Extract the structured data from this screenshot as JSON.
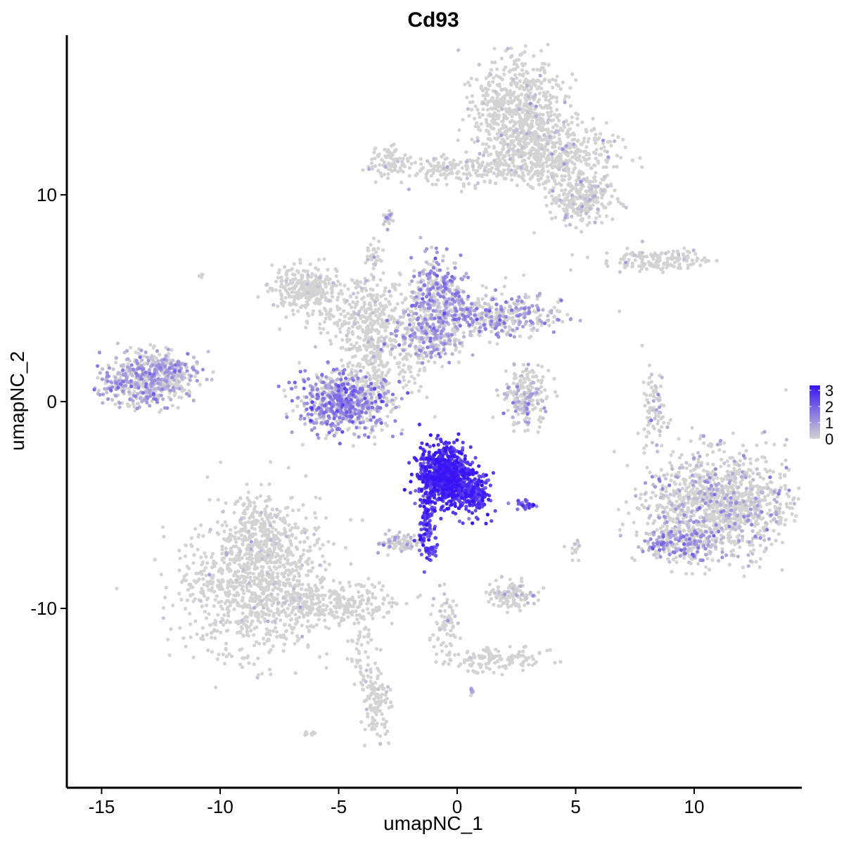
{
  "chart_data": {
    "type": "scatter",
    "title": "Cd93",
    "xlabel": "umapNC_1",
    "ylabel": "umapNC_2",
    "xlim": [
      -16.5,
      14.5
    ],
    "ylim": [
      -18.5,
      17.5
    ],
    "x_ticks": [
      -15,
      -10,
      -5,
      0,
      5,
      10
    ],
    "x_tick_labels": [
      "-15",
      "-10",
      "-5",
      "0",
      "5",
      "10"
    ],
    "y_ticks": [
      -10,
      0,
      10
    ],
    "y_tick_labels": [
      "-10",
      "0",
      "10"
    ],
    "grid": false,
    "legend": {
      "placement": "right",
      "title": "",
      "labels": [
        "0",
        "1",
        "2",
        "3"
      ],
      "values": [
        0,
        1,
        2,
        3
      ]
    },
    "color_scale": {
      "low": "#d3d3d3",
      "high": "#3a14f5",
      "min": 0,
      "max": 3.3
    },
    "series": [
      {
        "clusters": [
          {
            "cx": -8.5,
            "cy": -9.0,
            "sx": 1.6,
            "sy": 1.6,
            "n": 900,
            "expr_mean": 0.05,
            "expr_frac": 0.03
          },
          {
            "cx": -8.2,
            "cy": -6.5,
            "sx": 0.9,
            "sy": 1.0,
            "n": 300,
            "expr_mean": 0.05,
            "expr_frac": 0.03
          },
          {
            "cx": -5.0,
            "cy": -9.8,
            "sx": 1.4,
            "sy": 0.5,
            "n": 250,
            "expr_mean": 0.05,
            "expr_frac": 0.03
          },
          {
            "cx": -3.5,
            "cy": -14.5,
            "sx": 0.3,
            "sy": 0.9,
            "n": 120,
            "expr_mean": 0.2,
            "expr_frac": 0.05
          },
          {
            "cx": -4.0,
            "cy": -12.0,
            "sx": 0.3,
            "sy": 0.9,
            "n": 40,
            "expr_mean": 0.05,
            "expr_frac": 0.02
          },
          {
            "cx": 2.5,
            "cy": 14.0,
            "sx": 0.9,
            "sy": 1.2,
            "n": 600,
            "expr_mean": 0.1,
            "expr_frac": 0.04
          },
          {
            "cx": 4.0,
            "cy": 12.0,
            "sx": 1.3,
            "sy": 0.8,
            "n": 500,
            "expr_mean": 0.15,
            "expr_frac": 0.05
          },
          {
            "cx": 5.3,
            "cy": 9.8,
            "sx": 0.7,
            "sy": 0.6,
            "n": 250,
            "expr_mean": 0.4,
            "expr_frac": 0.15
          },
          {
            "cx": 0.5,
            "cy": 11.2,
            "sx": 1.6,
            "sy": 0.35,
            "n": 200,
            "expr_mean": 0.1,
            "expr_frac": 0.05
          },
          {
            "cx": -2.7,
            "cy": 11.6,
            "sx": 0.6,
            "sy": 0.4,
            "n": 80,
            "expr_mean": 0.1,
            "expr_frac": 0.05
          },
          {
            "cx": 8.5,
            "cy": 6.8,
            "sx": 1.2,
            "sy": 0.25,
            "n": 150,
            "expr_mean": 0.15,
            "expr_frac": 0.05
          },
          {
            "cx": -6.4,
            "cy": 5.5,
            "sx": 0.7,
            "sy": 0.5,
            "n": 250,
            "expr_mean": 0.05,
            "expr_frac": 0.02
          },
          {
            "cx": -4.2,
            "cy": 4.3,
            "sx": 1.2,
            "sy": 0.7,
            "n": 250,
            "expr_mean": 0.1,
            "expr_frac": 0.04
          },
          {
            "cx": -3.6,
            "cy": 2.0,
            "sx": 0.6,
            "sy": 1.5,
            "n": 300,
            "expr_mean": 0.2,
            "expr_frac": 0.08
          },
          {
            "cx": -1.2,
            "cy": 3.2,
            "sx": 0.8,
            "sy": 0.6,
            "n": 250,
            "expr_mean": 0.8,
            "expr_frac": 0.5
          },
          {
            "cx": -0.8,
            "cy": 5.2,
            "sx": 0.6,
            "sy": 0.9,
            "n": 300,
            "expr_mean": 1.1,
            "expr_frac": 0.55
          },
          {
            "cx": 1.5,
            "cy": 4.2,
            "sx": 1.5,
            "sy": 0.5,
            "n": 400,
            "expr_mean": 0.9,
            "expr_frac": 0.5
          },
          {
            "cx": -4.8,
            "cy": -0.1,
            "sx": 0.9,
            "sy": 0.7,
            "n": 650,
            "expr_mean": 1.3,
            "expr_frac": 0.6
          },
          {
            "cx": -13.2,
            "cy": 1.0,
            "sx": 0.9,
            "sy": 0.6,
            "n": 500,
            "expr_mean": 0.8,
            "expr_frac": 0.5
          },
          {
            "cx": -12.0,
            "cy": 1.6,
            "sx": 0.6,
            "sy": 0.4,
            "n": 130,
            "expr_mean": 0.7,
            "expr_frac": 0.5
          },
          {
            "cx": 2.9,
            "cy": 0.3,
            "sx": 0.5,
            "sy": 0.8,
            "n": 200,
            "expr_mean": 0.5,
            "expr_frac": 0.3
          },
          {
            "cx": 8.3,
            "cy": -0.5,
            "sx": 0.25,
            "sy": 0.9,
            "n": 80,
            "expr_mean": 0.3,
            "expr_frac": 0.2
          },
          {
            "cx": 11.0,
            "cy": -5.0,
            "sx": 1.5,
            "sy": 1.3,
            "n": 1200,
            "expr_mean": 0.6,
            "expr_frac": 0.22
          },
          {
            "cx": 9.5,
            "cy": -6.8,
            "sx": 0.8,
            "sy": 0.4,
            "n": 200,
            "expr_mean": 1.0,
            "expr_frac": 0.5
          },
          {
            "cx": -0.5,
            "cy": -3.6,
            "sx": 0.55,
            "sy": 0.7,
            "n": 900,
            "expr_mean": 2.8,
            "expr_frac": 1.0
          },
          {
            "cx": 0.7,
            "cy": -4.5,
            "sx": 0.35,
            "sy": 0.5,
            "n": 180,
            "expr_mean": 2.6,
            "expr_frac": 1.0
          },
          {
            "cx": -1.3,
            "cy": -6.0,
            "sx": 0.2,
            "sy": 0.8,
            "n": 100,
            "expr_mean": 2.4,
            "expr_frac": 1.0
          },
          {
            "cx": 2.8,
            "cy": -5.0,
            "sx": 0.25,
            "sy": 0.1,
            "n": 30,
            "expr_mean": 2.0,
            "expr_frac": 1.0
          },
          {
            "cx": -2.4,
            "cy": -6.8,
            "sx": 0.4,
            "sy": 0.25,
            "n": 80,
            "expr_mean": 0.4,
            "expr_frac": 0.3
          },
          {
            "cx": -1.0,
            "cy": -7.2,
            "sx": 0.15,
            "sy": 0.12,
            "n": 20,
            "expr_mean": 2.0,
            "expr_frac": 1.0
          },
          {
            "cx": 2.3,
            "cy": -9.3,
            "sx": 0.5,
            "sy": 0.35,
            "n": 120,
            "expr_mean": 0.4,
            "expr_frac": 0.2
          },
          {
            "cx": 5.0,
            "cy": -7.2,
            "sx": 0.1,
            "sy": 0.25,
            "n": 15,
            "expr_mean": 0.3,
            "expr_frac": 0.2
          },
          {
            "cx": -0.5,
            "cy": -10.8,
            "sx": 0.3,
            "sy": 0.8,
            "n": 70,
            "expr_mean": 0.2,
            "expr_frac": 0.1
          },
          {
            "cx": 1.5,
            "cy": -12.5,
            "sx": 1.0,
            "sy": 0.3,
            "n": 120,
            "expr_mean": 0.05,
            "expr_frac": 0.02
          },
          {
            "cx": -1.8,
            "cy": 1.5,
            "sx": 0.5,
            "sy": 0.5,
            "n": 40,
            "expr_mean": 0.05,
            "expr_frac": 0.02
          },
          {
            "cx": -3.5,
            "cy": 7.0,
            "sx": 0.2,
            "sy": 0.4,
            "n": 30,
            "expr_mean": 0.1,
            "expr_frac": 0.05
          },
          {
            "cx": -2.9,
            "cy": 8.8,
            "sx": 0.1,
            "sy": 0.2,
            "n": 20,
            "expr_mean": 0.6,
            "expr_frac": 0.5
          },
          {
            "cx": 0.6,
            "cy": -14.0,
            "sx": 0.05,
            "sy": 0.08,
            "n": 8,
            "expr_mean": 0.6,
            "expr_frac": 0.5
          },
          {
            "cx": -6.2,
            "cy": -16.0,
            "sx": 0.15,
            "sy": 0.08,
            "n": 10,
            "expr_mean": 0.0,
            "expr_frac": 0.0
          },
          {
            "cx": -10.8,
            "cy": 6.1,
            "sx": 0.05,
            "sy": 0.05,
            "n": 4,
            "expr_mean": 0.0,
            "expr_frac": 0.0
          }
        ]
      }
    ]
  }
}
